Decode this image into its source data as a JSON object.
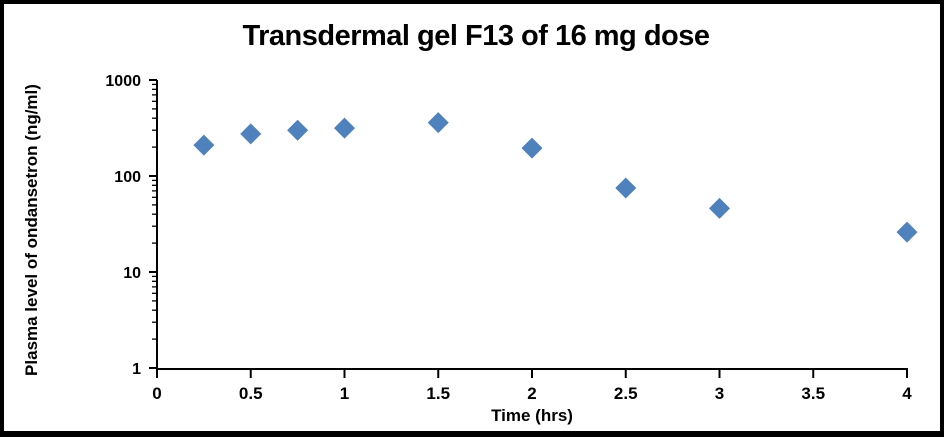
{
  "chart": {
    "title": "Transdermal gel F13 of 16 mg dose",
    "x_axis_label": "Time (hrs)",
    "y_axis_label": "Plasma level of ondansetron (ng/ml)"
  },
  "chart_data": {
    "type": "scatter",
    "title": "Transdermal gel F13 of 16 mg dose",
    "xlabel": "Time (hrs)",
    "ylabel": "Plasma level of ondansetron (ng/ml)",
    "x": [
      0.25,
      0.5,
      0.75,
      1,
      1.5,
      2,
      2.5,
      3,
      4
    ],
    "y": [
      210,
      275,
      300,
      315,
      360,
      195,
      75,
      46,
      26
    ],
    "marker": "diamond",
    "y_scale": "log",
    "xlim": [
      0,
      4
    ],
    "ylim": [
      1,
      1000
    ],
    "x_ticks": [
      0,
      0.5,
      1,
      1.5,
      2,
      2.5,
      3,
      3.5,
      4
    ],
    "x_tick_labels": [
      "0",
      "0.5",
      "1",
      "1.5",
      "2",
      "2.5",
      "3",
      "3.5",
      "4"
    ],
    "y_ticks": [
      1,
      10,
      100,
      1000
    ],
    "y_tick_labels": [
      "1",
      "10",
      "100",
      "1000"
    ],
    "grid": false,
    "legend": "none",
    "colors": {
      "marker": "#4F81BD",
      "axis": "#000000",
      "text": "#000000",
      "background": "#FFFFFF",
      "frame": "#000000"
    }
  }
}
